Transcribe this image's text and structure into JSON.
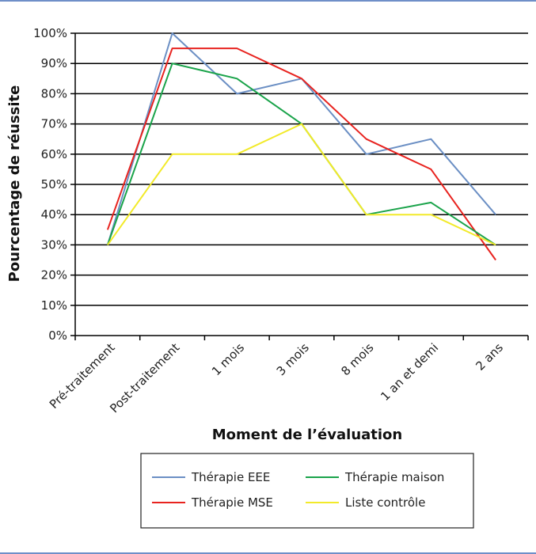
{
  "chart_data": {
    "type": "line",
    "xlabel": "Moment de l’évaluation",
    "ylabel": "Pourcentage de réussite",
    "categories": [
      "Pré-traitement",
      "Post-traitement",
      "1 mois",
      "3 mois",
      "8 mois",
      "1 an et demi",
      "2 ans"
    ],
    "ylim": [
      0,
      100
    ],
    "yticks": [
      "0%",
      "10%",
      "20%",
      "30%",
      "40%",
      "50%",
      "60%",
      "70%",
      "80%",
      "90%",
      "100%"
    ],
    "grid": true,
    "legend_position": "bottom",
    "series": [
      {
        "name": "Thérapie EEE",
        "color": "#6b8fc4",
        "values": [
          30,
          100,
          80,
          85,
          60,
          65,
          40
        ]
      },
      {
        "name": "Thérapie maison",
        "color": "#1aa34a",
        "values": [
          30,
          90,
          85,
          70,
          40,
          44,
          30
        ]
      },
      {
        "name": "Thérapie MSE",
        "color": "#e8231f",
        "values": [
          35,
          95,
          95,
          85,
          65,
          55,
          25
        ]
      },
      {
        "name": "Liste contrôle",
        "color": "#f2ea2a",
        "values": [
          30,
          60,
          60,
          70,
          40,
          40,
          30
        ]
      }
    ]
  }
}
